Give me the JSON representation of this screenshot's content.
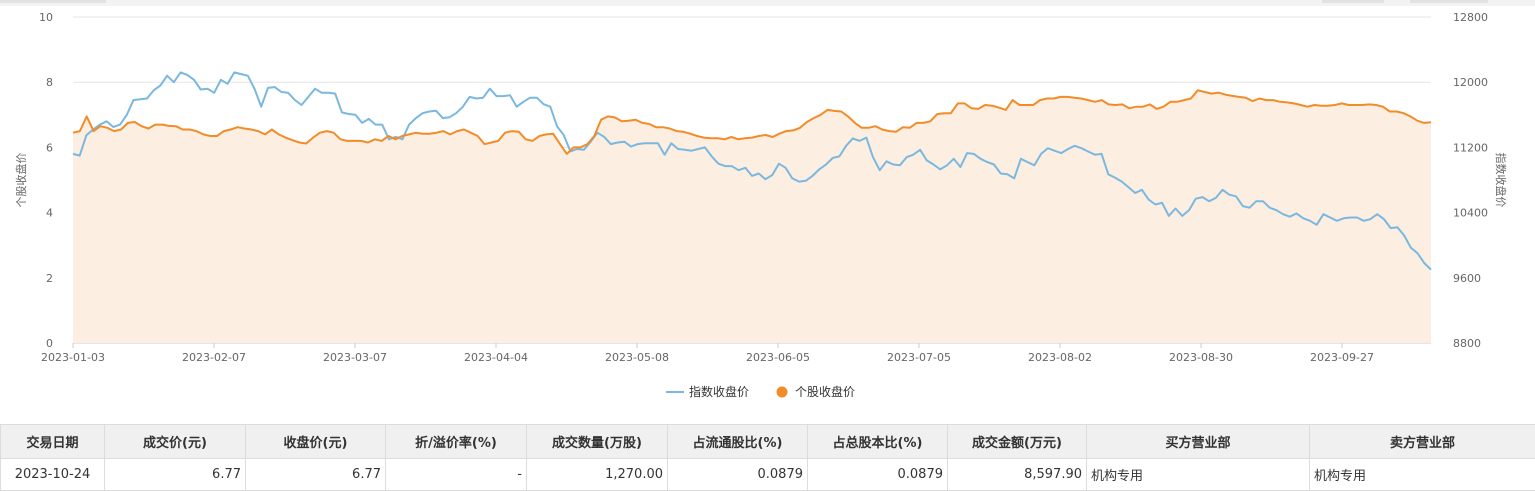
{
  "chart_data": {
    "type": "line",
    "x_ticks": [
      "2023-01-03",
      "2023-02-07",
      "2023-03-07",
      "2023-04-04",
      "2023-05-08",
      "2023-06-05",
      "2023-07-05",
      "2023-08-02",
      "2023-08-30",
      "2023-09-27"
    ],
    "ylabel_left": "个股收盘价",
    "ylabel_right": "指数收盘价",
    "ylim_left": [
      0,
      10
    ],
    "ylim_right": [
      8800,
      12800
    ],
    "left_ticks": [
      "0",
      "2",
      "4",
      "6",
      "8",
      "10"
    ],
    "right_ticks": [
      "8800",
      "9600",
      "10400",
      "11200",
      "12000",
      "12800"
    ],
    "legend_position": "bottom-center",
    "grid": "horizontal",
    "series": [
      {
        "name": "指数收盘价",
        "axis": "right",
        "color": "#7ab8e0",
        "values": [
          11120,
          11100,
          11350,
          11420,
          11480,
          11520,
          11450,
          11480,
          11600,
          11780,
          11790,
          11800,
          11900,
          11960,
          12080,
          12000,
          12120,
          12090,
          12030,
          11910,
          11920,
          11870,
          12030,
          11980,
          12120,
          12100,
          12080,
          11920,
          11700,
          11930,
          11940,
          11880,
          11870,
          11780,
          11720,
          11820,
          11920,
          11870,
          11870,
          11860,
          11630,
          11610,
          11600,
          11500,
          11550,
          11480,
          11480,
          11300,
          11330,
          11300,
          11480,
          11560,
          11620,
          11640,
          11650,
          11560,
          11570,
          11620,
          11700,
          11820,
          11800,
          11810,
          11920,
          11830,
          11830,
          11840,
          11700,
          11760,
          11810,
          11810,
          11730,
          11700,
          11460,
          11350,
          11150,
          11180,
          11170,
          11270,
          11380,
          11330,
          11240,
          11260,
          11270,
          11210,
          11240,
          11250,
          11250,
          11250,
          11110,
          11250,
          11180,
          11170,
          11160,
          11180,
          11200,
          11090,
          11000,
          10970,
          10970,
          10920,
          10950,
          10850,
          10880,
          10810,
          10860,
          11000,
          10950,
          10820,
          10780,
          10790,
          10850,
          10930,
          10990,
          11070,
          11090,
          11220,
          11310,
          11280,
          11320,
          11080,
          10920,
          11030,
          10990,
          10980,
          11080,
          11110,
          11170,
          11040,
          10990,
          10930,
          10980,
          11060,
          10960,
          11130,
          11120,
          11060,
          11020,
          10990,
          10880,
          10870,
          10820,
          11060,
          11020,
          10980,
          11120,
          11190,
          11160,
          11130,
          11180,
          11220,
          11190,
          11150,
          11110,
          11120,
          10870,
          10830,
          10780,
          10710,
          10640,
          10680,
          10560,
          10500,
          10520,
          10360,
          10450,
          10360,
          10430,
          10570,
          10590,
          10540,
          10580,
          10680,
          10620,
          10600,
          10480,
          10460,
          10540,
          10540,
          10460,
          10430,
          10380,
          10350,
          10390,
          10330,
          10300,
          10250,
          10380,
          10340,
          10300,
          10330,
          10340,
          10340,
          10300,
          10320,
          10380,
          10320,
          10210,
          10220,
          10120,
          9970,
          9900,
          9780,
          9700
        ],
        "smoothed": true
      },
      {
        "name": "个股收盘价",
        "axis": "left",
        "color": "#f28c28",
        "values": [
          6.45,
          6.5,
          6.95,
          6.5,
          6.65,
          6.6,
          6.5,
          6.55,
          6.75,
          6.78,
          6.65,
          6.58,
          6.7,
          6.7,
          6.66,
          6.65,
          6.55,
          6.55,
          6.5,
          6.4,
          6.35,
          6.35,
          6.5,
          6.55,
          6.62,
          6.58,
          6.55,
          6.5,
          6.4,
          6.55,
          6.4,
          6.3,
          6.22,
          6.15,
          6.12,
          6.3,
          6.45,
          6.5,
          6.45,
          6.25,
          6.2,
          6.2,
          6.2,
          6.15,
          6.25,
          6.2,
          6.35,
          6.25,
          6.35,
          6.4,
          6.45,
          6.42,
          6.42,
          6.45,
          6.5,
          6.4,
          6.5,
          6.55,
          6.45,
          6.35,
          6.1,
          6.15,
          6.2,
          6.45,
          6.5,
          6.48,
          6.25,
          6.2,
          6.35,
          6.4,
          6.42,
          6.1,
          5.8,
          6.0,
          6.0,
          6.1,
          6.35,
          6.85,
          6.95,
          6.92,
          6.8,
          6.82,
          6.85,
          6.75,
          6.72,
          6.62,
          6.62,
          6.58,
          6.5,
          6.48,
          6.42,
          6.35,
          6.3,
          6.28,
          6.28,
          6.25,
          6.32,
          6.25,
          6.28,
          6.3,
          6.35,
          6.38,
          6.32,
          6.42,
          6.5,
          6.52,
          6.6,
          6.78,
          6.9,
          7.0,
          7.15,
          7.12,
          7.1,
          6.95,
          6.75,
          6.6,
          6.6,
          6.65,
          6.55,
          6.5,
          6.48,
          6.62,
          6.6,
          6.75,
          6.75,
          6.8,
          7.02,
          7.05,
          7.05,
          7.35,
          7.35,
          7.2,
          7.18,
          7.3,
          7.28,
          7.22,
          7.15,
          7.45,
          7.3,
          7.3,
          7.3,
          7.45,
          7.5,
          7.5,
          7.55,
          7.55,
          7.52,
          7.5,
          7.45,
          7.4,
          7.45,
          7.32,
          7.3,
          7.32,
          7.2,
          7.25,
          7.25,
          7.32,
          7.18,
          7.25,
          7.4,
          7.4,
          7.45,
          7.5,
          7.75,
          7.7,
          7.65,
          7.68,
          7.62,
          7.58,
          7.55,
          7.52,
          7.42,
          7.5,
          7.45,
          7.45,
          7.4,
          7.38,
          7.35,
          7.3,
          7.25,
          7.3,
          7.28,
          7.28,
          7.3,
          7.35,
          7.3,
          7.3,
          7.3,
          7.32,
          7.3,
          7.25,
          7.1,
          7.1,
          7.05,
          6.95,
          6.82,
          6.75,
          6.77
        ]
      }
    ]
  },
  "table": {
    "headers": [
      "交易日期",
      "成交价(元)",
      "收盘价(元)",
      "折/溢价率(%)",
      "成交数量(万股)",
      "占流通股比(%)",
      "占总股本比(%)",
      "成交金额(万元)",
      "买方营业部",
      "卖方营业部"
    ],
    "rows": [
      [
        "2023-10-24",
        "6.77",
        "6.77",
        "-",
        "1,270.00",
        "0.0879",
        "0.0879",
        "8,597.90",
        "机构专用",
        "机构专用"
      ]
    ]
  }
}
